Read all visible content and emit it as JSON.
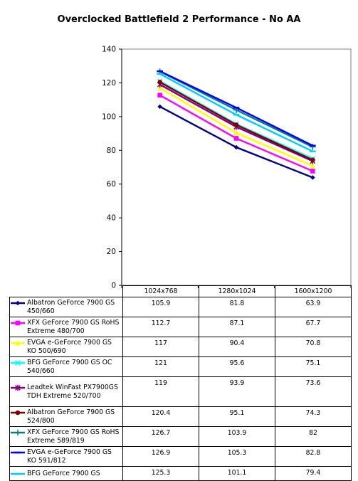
{
  "chart_data": {
    "type": "line",
    "title": "Overclocked Battlefield 2 Performance - No AA",
    "xlabel": "",
    "ylabel": "",
    "categories": [
      "1024x768",
      "1280x1024",
      "1600x1200"
    ],
    "ylim": [
      0,
      140
    ],
    "yticks": [
      "0",
      "20",
      "40",
      "60",
      "80",
      "100",
      "120",
      "140"
    ],
    "grid": false,
    "legend": "data-table",
    "series": [
      {
        "name": "Albatron GeForce 7900 GS 450/660",
        "values": [
          105.9,
          81.8,
          63.9
        ],
        "color": "#000080",
        "marker": "diamond"
      },
      {
        "name": "XFX GeForce 7900 GS RoHS Extreme 480/700",
        "values": [
          112.7,
          87.1,
          67.7
        ],
        "color": "#ff00ff",
        "marker": "square"
      },
      {
        "name": "EVGA e-GeForce 7900 GS KO 500/690",
        "values": [
          117,
          90.4,
          70.8
        ],
        "color": "#ffff00",
        "marker": "triangle"
      },
      {
        "name": "BFG GeForce 7900 GS OC 540/660",
        "values": [
          121,
          95.6,
          75.1
        ],
        "color": "#00ffff",
        "marker": "x"
      },
      {
        "name": "Leadtek WinFast PX7900GS TDH Extreme 520/700",
        "values": [
          119,
          93.9,
          73.6
        ],
        "color": "#800080",
        "marker": "star"
      },
      {
        "name": "Albatron GeForce 7900 GS 524/800",
        "values": [
          120.4,
          95.1,
          74.3
        ],
        "color": "#800000",
        "marker": "circle"
      },
      {
        "name": "XFX GeForce 7900 GS RoHS Extreme 589/819",
        "values": [
          126.7,
          103.9,
          82
        ],
        "color": "#008080",
        "marker": "plus"
      },
      {
        "name": "EVGA e-GeForce 7900 GS KO 591/812",
        "values": [
          126.9,
          105.3,
          82.8
        ],
        "color": "#0000ff",
        "marker": "dash"
      },
      {
        "name": "BFG GeForce 7900 GS",
        "values": [
          125.3,
          101.1,
          79.4
        ],
        "color": "#00ccff",
        "marker": "dash"
      }
    ]
  }
}
